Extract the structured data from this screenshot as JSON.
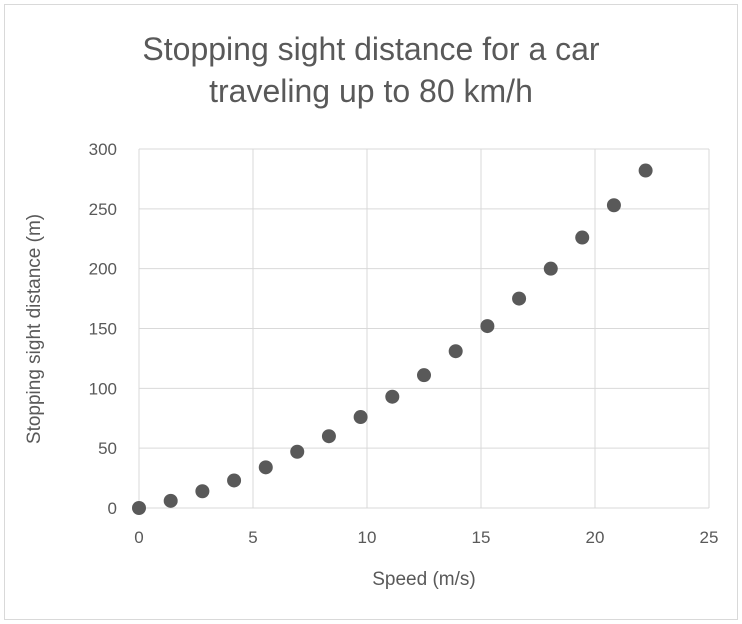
{
  "chart_data": {
    "type": "scatter",
    "title_lines": [
      "Stopping sight distance for a car",
      "traveling up to 80 km/h"
    ],
    "xlabel": "Speed (m/s)",
    "ylabel": "Stopping sight distance (m)",
    "xlim": [
      0,
      25
    ],
    "ylim": [
      0,
      300
    ],
    "xticks": [
      0,
      5,
      10,
      15,
      20,
      25
    ],
    "yticks": [
      0,
      50,
      100,
      150,
      200,
      250,
      300
    ],
    "grid": true,
    "legend": "none",
    "marker_color": "#595959",
    "points": [
      {
        "x": 0,
        "y": 0
      },
      {
        "x": 1.39,
        "y": 6
      },
      {
        "x": 2.78,
        "y": 14
      },
      {
        "x": 4.17,
        "y": 23
      },
      {
        "x": 5.56,
        "y": 34
      },
      {
        "x": 6.94,
        "y": 47
      },
      {
        "x": 8.33,
        "y": 60
      },
      {
        "x": 9.72,
        "y": 76
      },
      {
        "x": 11.11,
        "y": 93
      },
      {
        "x": 12.5,
        "y": 111
      },
      {
        "x": 13.89,
        "y": 131
      },
      {
        "x": 15.28,
        "y": 152
      },
      {
        "x": 16.67,
        "y": 175
      },
      {
        "x": 18.06,
        "y": 200
      },
      {
        "x": 19.44,
        "y": 226
      },
      {
        "x": 20.83,
        "y": 253
      },
      {
        "x": 22.22,
        "y": 282
      }
    ]
  }
}
